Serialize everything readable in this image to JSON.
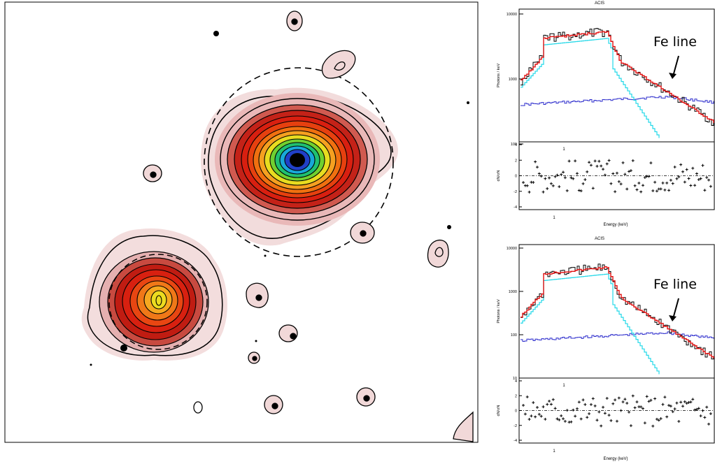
{
  "figure": {
    "panels": [
      {
        "title": "ACIS",
        "ylabel": "Photons / keV",
        "residual_ylabel": "dN/σN",
        "xlabel": "Energy (keV)",
        "y_ticks": [
          "10000",
          "1000",
          "100"
        ],
        "x_tick_top": "1",
        "x_tick_bottom": "1",
        "residual_ticks": [
          "4",
          "2",
          "0",
          "-2",
          "-4"
        ],
        "annotation": "Fe line"
      },
      {
        "title": "ACIS",
        "ylabel": "Photons / keV",
        "residual_ylabel": "dN/σN",
        "xlabel": "Energy (keV)",
        "y_ticks": [
          "10000",
          "1000",
          "100",
          "10"
        ],
        "x_tick_top": "1",
        "x_tick_bottom": "1",
        "residual_ticks": [
          "4",
          "2",
          "0",
          "-2",
          "-4"
        ],
        "annotation": "Fe line"
      }
    ],
    "colors": {
      "data": "#000000",
      "total_model": "#e01010",
      "thermal_model": "#22d8e8",
      "background_model": "#2a2acc"
    },
    "image_colormap": [
      "#000000",
      "#2030c0",
      "#18a0e0",
      "#20c050",
      "#d8e020",
      "#f0a020",
      "#e05010",
      "#c01010",
      "#8a0000"
    ]
  }
}
